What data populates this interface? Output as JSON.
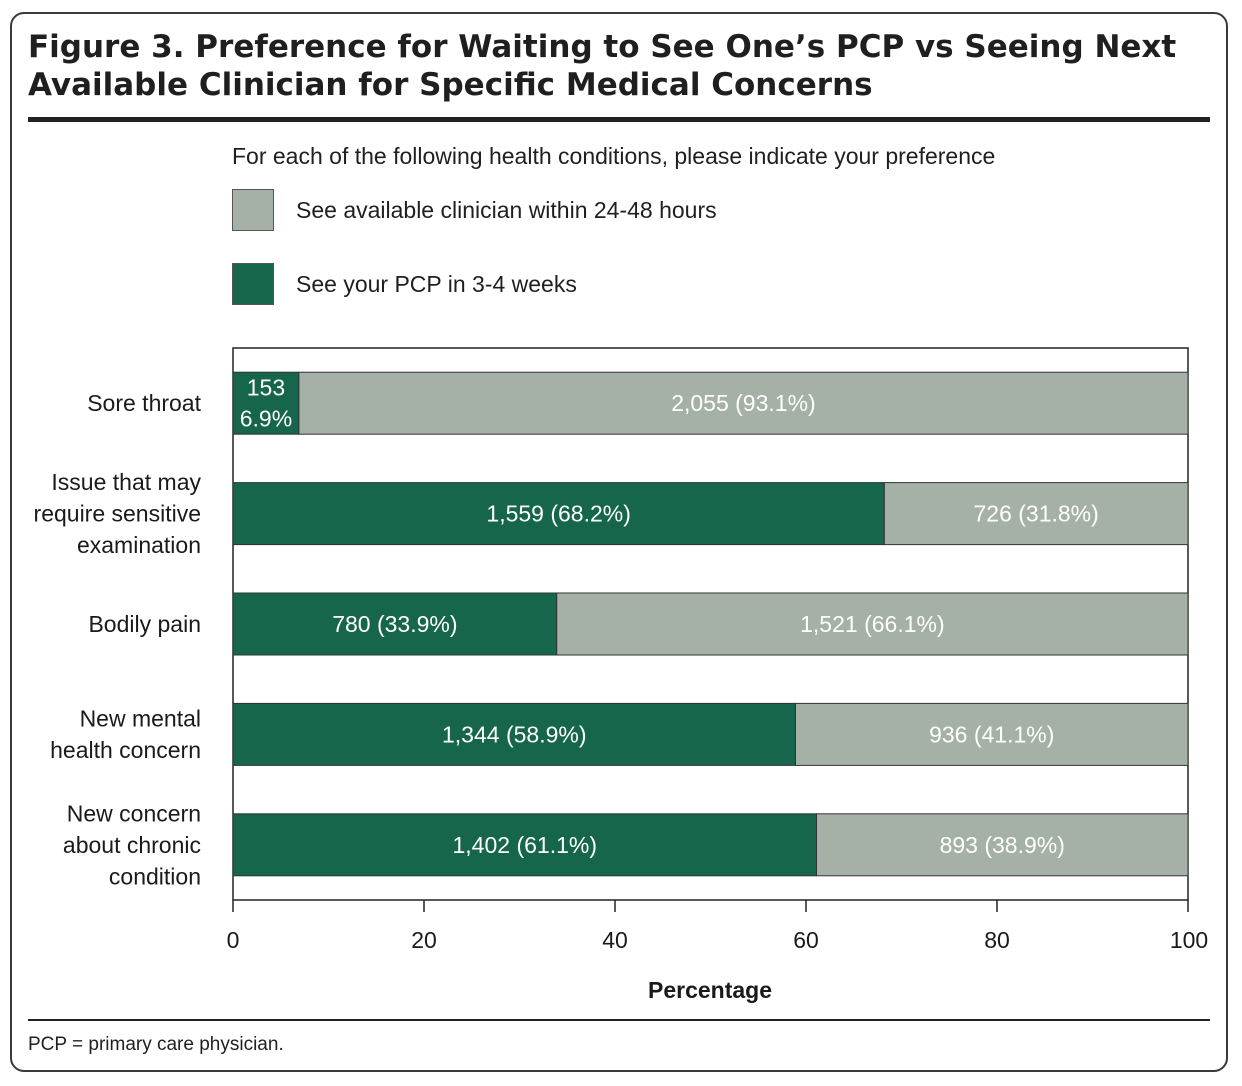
{
  "figure": {
    "title": "Figure 3. Preference for Waiting to See One’s PCP vs Seeing Next Available Clinician for Specific Medical Concerns",
    "footnote": "PCP = primary care physician."
  },
  "colors": {
    "pcp": "#15664a",
    "available": "#a5b0a7",
    "text_on_bar": "#ffffff"
  },
  "chart_data": {
    "type": "bar",
    "orientation": "horizontal",
    "stacked": true,
    "subtitle": "For each of the following health conditions, please indicate your preference",
    "categories": [
      "Sore throat",
      "Issue that may require sensitive examination",
      "Bodily pain",
      "New mental health concern",
      "New concern about chronic condition"
    ],
    "category_lines": [
      [
        "Sore throat"
      ],
      [
        "Issue that may",
        "require sensitive",
        "examination"
      ],
      [
        "Bodily pain"
      ],
      [
        "New mental",
        "health concern"
      ],
      [
        "New concern",
        "about chronic",
        "condition"
      ]
    ],
    "series": [
      {
        "name": "See your PCP in 3-4 weeks",
        "values": [
          6.9,
          68.2,
          33.9,
          58.9,
          61.1
        ],
        "counts": [
          153,
          1559,
          780,
          1344,
          1402
        ],
        "labels": [
          "153\n6.9%",
          "1,559 (68.2%)",
          "780 (33.9%)",
          "1,344 (58.9%)",
          "1,402 (61.1%)"
        ]
      },
      {
        "name": "See available clinician within 24-48 hours",
        "values": [
          93.1,
          31.8,
          66.1,
          41.1,
          38.9
        ],
        "counts": [
          2055,
          726,
          1521,
          936,
          893
        ],
        "labels": [
          "2,055 (93.1%)",
          "726 (31.8%)",
          "1,521 (66.1%)",
          "936 (41.1%)",
          "893 (38.9%)"
        ]
      }
    ],
    "legend_order": [
      1,
      0
    ],
    "xlabel": "Percentage",
    "xlim": [
      0,
      100
    ],
    "xticks": [
      0,
      20,
      40,
      60,
      80,
      100
    ],
    "grid": false,
    "legend_position": "top"
  }
}
